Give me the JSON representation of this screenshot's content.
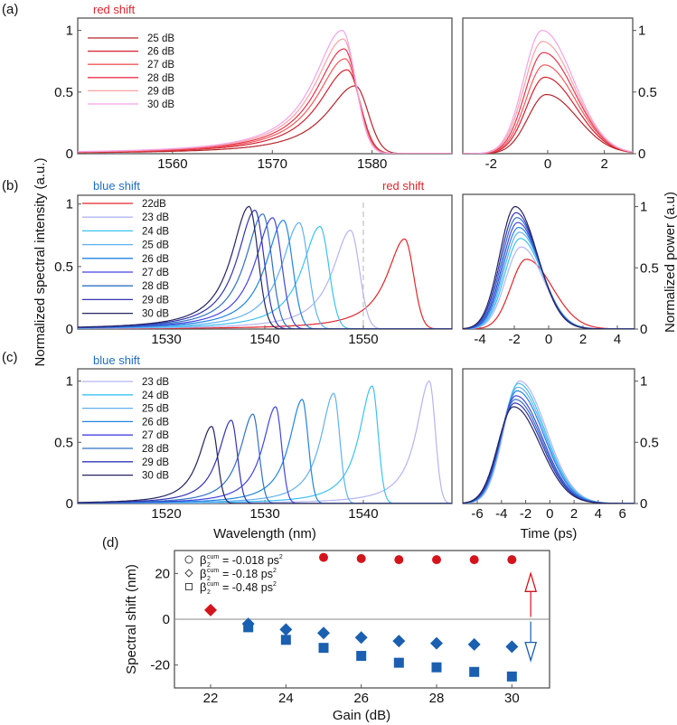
{
  "panel_labels": {
    "a": "(a)",
    "b": "(b)",
    "c": "(c)",
    "d": "(d)"
  },
  "annotations": {
    "a_red_shift": "red shift",
    "b_blue_shift": "blue shift",
    "b_red_shift": "red shift",
    "c_blue_shift": "blue shift"
  },
  "axis_labels": {
    "spectral_y": "Normalized spectral intensity (a.u.)",
    "power_y": "Normalized power (a.u)",
    "wavelength_x": "Wavelength (nm)",
    "time_x": "Time (ps)",
    "gain_x": "Gain (dB)",
    "shift_y": "Spectral shift (nm)"
  },
  "colors": {
    "red": "#e0262b",
    "blue": "#1f6fc0",
    "axis": "#555555"
  },
  "chart_data": [
    {
      "id": "a-spectrum",
      "type": "line",
      "xlabel": "Wavelength (nm)",
      "ylabel": "Normalized spectral intensity (a.u.)",
      "xlim": [
        1550.5,
        1588
      ],
      "ylim": [
        0,
        1.1
      ],
      "xticks": [
        "1560",
        "1570",
        "1580"
      ],
      "yticks": [
        "0",
        "0.5",
        "1"
      ],
      "shape": {
        "left_width": 3.5,
        "right_sigma": 1.3
      },
      "series": [
        {
          "name": "25 dB",
          "color": "#b3262b",
          "peak_x": 1578.3,
          "peak_y": 0.55
        },
        {
          "name": "26 dB",
          "color": "#d4202f",
          "peak_x": 1577.5,
          "peak_y": 0.68
        },
        {
          "name": "27 dB",
          "color": "#f05a5a",
          "peak_x": 1577.3,
          "peak_y": 0.77
        },
        {
          "name": "28 dB",
          "color": "#e8334f",
          "peak_x": 1577.2,
          "peak_y": 0.85
        },
        {
          "name": "29 dB",
          "color": "#f7a3a3",
          "peak_x": 1577.1,
          "peak_y": 0.93
        },
        {
          "name": "30 dB",
          "color": "#f2a2e8",
          "peak_x": 1577.0,
          "peak_y": 1.0
        }
      ]
    },
    {
      "id": "a-pulse",
      "type": "line",
      "xlabel": "Time (ps)",
      "ylabel": "Normalized power (a.u)",
      "xlim": [
        -3,
        3
      ],
      "ylim": [
        0,
        1.1
      ],
      "xticks": [
        "-2",
        "0",
        "2"
      ],
      "yticks": [
        "0",
        "0.5",
        "1"
      ],
      "shape": {
        "left_sigma": 0.65,
        "right_sigma": 1.1
      },
      "series": [
        {
          "name": "25 dB",
          "color": "#b3262b",
          "peak_x": -0.05,
          "peak_y": 0.48
        },
        {
          "name": "26 dB",
          "color": "#d4202f",
          "peak_x": -0.1,
          "peak_y": 0.62
        },
        {
          "name": "27 dB",
          "color": "#f05a5a",
          "peak_x": -0.12,
          "peak_y": 0.72
        },
        {
          "name": "28 dB",
          "color": "#e8334f",
          "peak_x": -0.15,
          "peak_y": 0.82
        },
        {
          "name": "29 dB",
          "color": "#f7a3a3",
          "peak_x": -0.18,
          "peak_y": 0.91
        },
        {
          "name": "30 dB",
          "color": "#f2a2e8",
          "peak_x": -0.2,
          "peak_y": 1.0
        }
      ]
    },
    {
      "id": "b-spectrum",
      "type": "line",
      "xlabel": "Wavelength (nm)",
      "ylabel": "Normalized spectral intensity (a.u.)",
      "xlim": [
        1521,
        1559
      ],
      "ylim": [
        0,
        1.07
      ],
      "xticks": [
        "1530",
        "1540",
        "1550"
      ],
      "yticks": [
        "0",
        "0.5",
        "1"
      ],
      "reference_line_x": 1550,
      "shape": {
        "left_width": 2.2,
        "right_sigma": 0.9
      },
      "series": [
        {
          "name": "22dB",
          "color": "#e0262b",
          "peak_x": 1554.2,
          "peak_y": 0.72
        },
        {
          "name": "23 dB",
          "color": "#b4b4f2",
          "peak_x": 1548.7,
          "peak_y": 0.79
        },
        {
          "name": "24 dB",
          "color": "#3cc2f0",
          "peak_x": 1545.6,
          "peak_y": 0.82
        },
        {
          "name": "25 dB",
          "color": "#62b0f0",
          "peak_x": 1543.5,
          "peak_y": 0.85
        },
        {
          "name": "26 dB",
          "color": "#2284e0",
          "peak_x": 1541.9,
          "peak_y": 0.87
        },
        {
          "name": "27 dB",
          "color": "#4444e0",
          "peak_x": 1540.8,
          "peak_y": 0.89
        },
        {
          "name": "28 dB",
          "color": "#3072c0",
          "peak_x": 1539.8,
          "peak_y": 0.92
        },
        {
          "name": "29 dB",
          "color": "#3434b4",
          "peak_x": 1539.0,
          "peak_y": 0.95
        },
        {
          "name": "30 dB",
          "color": "#232360",
          "peak_x": 1538.4,
          "peak_y": 0.98
        }
      ]
    },
    {
      "id": "b-pulse",
      "type": "line",
      "xlabel": "Time (ps)",
      "ylabel": "Normalized power (a.u)",
      "xlim": [
        -5,
        5
      ],
      "ylim": [
        0,
        1.1
      ],
      "xticks": [
        "-4",
        "-2",
        "0",
        "2",
        "4"
      ],
      "yticks": [
        "0",
        "0.5",
        "1"
      ],
      "shape": {
        "left_sigma": 0.9,
        "right_sigma": 1.3
      },
      "series": [
        {
          "name": "22dB",
          "color": "#e0262b",
          "peak_x": -1.3,
          "peak_y": 0.57
        },
        {
          "name": "23 dB",
          "color": "#b4b4f2",
          "peak_x": -1.6,
          "peak_y": 0.67
        },
        {
          "name": "24 dB",
          "color": "#3cc2f0",
          "peak_x": -1.65,
          "peak_y": 0.74
        },
        {
          "name": "25 dB",
          "color": "#62b0f0",
          "peak_x": -1.7,
          "peak_y": 0.79
        },
        {
          "name": "26 dB",
          "color": "#2284e0",
          "peak_x": -1.75,
          "peak_y": 0.83
        },
        {
          "name": "27 dB",
          "color": "#4444e0",
          "peak_x": -1.8,
          "peak_y": 0.87
        },
        {
          "name": "28 dB",
          "color": "#3072c0",
          "peak_x": -1.85,
          "peak_y": 0.91
        },
        {
          "name": "29 dB",
          "color": "#3434b4",
          "peak_x": -1.9,
          "peak_y": 0.95
        },
        {
          "name": "30 dB",
          "color": "#232360",
          "peak_x": -1.95,
          "peak_y": 1.0
        }
      ]
    },
    {
      "id": "c-spectrum",
      "type": "line",
      "xlabel": "Wavelength (nm)",
      "ylabel": "Normalized spectral intensity (a.u.)",
      "xlim": [
        1511,
        1549
      ],
      "ylim": [
        0,
        1.1
      ],
      "xticks": [
        "1520",
        "1530",
        "1540"
      ],
      "yticks": [
        "0",
        "0.5",
        "1"
      ],
      "shape": {
        "left_width": 1.6,
        "right_sigma": 0.6
      },
      "series": [
        {
          "name": "23 dB",
          "color": "#b4b4f2",
          "peak_x": 1546.7,
          "peak_y": 1.0
        },
        {
          "name": "24 dB",
          "color": "#3cc2f0",
          "peak_x": 1540.9,
          "peak_y": 0.96
        },
        {
          "name": "25 dB",
          "color": "#62b0f0",
          "peak_x": 1537.0,
          "peak_y": 0.9
        },
        {
          "name": "26 dB",
          "color": "#2284e0",
          "peak_x": 1533.8,
          "peak_y": 0.85
        },
        {
          "name": "27 dB",
          "color": "#4444e0",
          "peak_x": 1531.1,
          "peak_y": 0.79
        },
        {
          "name": "28 dB",
          "color": "#3072c0",
          "peak_x": 1528.8,
          "peak_y": 0.73
        },
        {
          "name": "29 dB",
          "color": "#3434b4",
          "peak_x": 1526.6,
          "peak_y": 0.68
        },
        {
          "name": "30 dB",
          "color": "#232360",
          "peak_x": 1524.6,
          "peak_y": 0.63
        }
      ]
    },
    {
      "id": "c-pulse",
      "type": "line",
      "xlabel": "Time (ps)",
      "ylabel": "Normalized power (a.u)",
      "xlim": [
        -7.2,
        7
      ],
      "ylim": [
        0,
        1.1
      ],
      "xticks": [
        "-6",
        "-4",
        "-2",
        "0",
        "2",
        "4",
        "6"
      ],
      "yticks": [
        "0",
        "0.5",
        "1"
      ],
      "shape": {
        "left_sigma": 1.3,
        "right_sigma": 2.2
      },
      "series": [
        {
          "name": "23 dB",
          "color": "#b4b4f2",
          "peak_x": -2.5,
          "peak_y": 1.0
        },
        {
          "name": "24 dB",
          "color": "#3cc2f0",
          "peak_x": -2.6,
          "peak_y": 0.98
        },
        {
          "name": "25 dB",
          "color": "#62b0f0",
          "peak_x": -2.65,
          "peak_y": 0.95
        },
        {
          "name": "26 dB",
          "color": "#2284e0",
          "peak_x": -2.7,
          "peak_y": 0.92
        },
        {
          "name": "27 dB",
          "color": "#4444e0",
          "peak_x": -2.8,
          "peak_y": 0.88
        },
        {
          "name": "28 dB",
          "color": "#3072c0",
          "peak_x": -2.85,
          "peak_y": 0.85
        },
        {
          "name": "29 dB",
          "color": "#3434b4",
          "peak_x": -2.9,
          "peak_y": 0.82
        },
        {
          "name": "30 dB",
          "color": "#232360",
          "peak_x": -3.0,
          "peak_y": 0.79
        }
      ]
    },
    {
      "id": "d-shift",
      "type": "scatter",
      "xlabel": "Gain (dB)",
      "ylabel": "Spectral shift (nm)",
      "xlim": [
        21.04,
        31
      ],
      "ylim": [
        -30,
        30
      ],
      "xticks": [
        "22",
        "24",
        "26",
        "28",
        "30"
      ],
      "yticks": [
        "-20",
        "0",
        "20"
      ],
      "legend": [
        {
          "marker": "circle",
          "beta": "β",
          "sub": "2",
          "sup": "cum",
          "text": "= -0.018  ps",
          "unit_sup": "2"
        },
        {
          "marker": "diamond",
          "beta": "β",
          "sub": "2",
          "sup": "cum",
          "text": "= -0.18  ps",
          "unit_sup": "2"
        },
        {
          "marker": "square",
          "beta": "β",
          "sub": "2",
          "sup": "cum",
          "text": "= -0.48  ps",
          "unit_sup": "2"
        }
      ],
      "series": [
        {
          "name": "β2cum = -0.018 ps2",
          "marker": "circle",
          "color": "#d4141c",
          "x": [
            25,
            26,
            27,
            28,
            29,
            30
          ],
          "y": [
            27,
            26.5,
            26,
            26,
            26,
            26
          ]
        },
        {
          "name": "β2cum = -0.18 ps2",
          "marker": "diamond",
          "colors": [
            "#d4141c",
            "#1a5fb0",
            "#1a5fb0",
            "#1a5fb0",
            "#1a5fb0",
            "#1a5fb0",
            "#1a5fb0",
            "#1a5fb0",
            "#1a5fb0"
          ],
          "x": [
            22,
            23,
            24,
            25,
            26,
            27,
            28,
            29,
            30
          ],
          "y": [
            4,
            -2,
            -4.5,
            -6,
            -8,
            -9.5,
            -10.5,
            -11,
            -12
          ]
        },
        {
          "name": "β2cum = -0.48 ps2",
          "marker": "square",
          "color": "#1a5fb0",
          "x": [
            23,
            24,
            25,
            26,
            27,
            28,
            29,
            30
          ],
          "y": [
            -3.5,
            -9,
            -12.5,
            -16,
            -19,
            -21,
            -23,
            -25
          ]
        }
      ],
      "arrows": [
        {
          "direction": "up",
          "color": "#d4141c",
          "x": 30.5,
          "from": 1,
          "to": 20
        },
        {
          "direction": "down",
          "color": "#1a5fb0",
          "x": 30.5,
          "from": -1,
          "to": -18
        }
      ],
      "zero_line": 0
    }
  ]
}
